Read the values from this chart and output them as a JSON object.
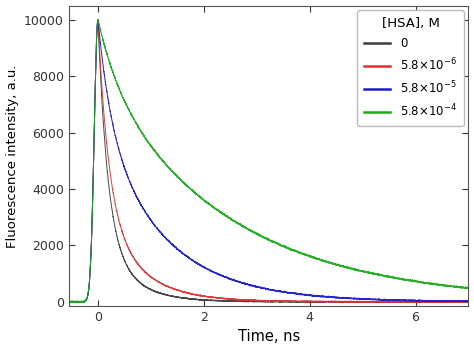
{
  "title": "",
  "xlabel": "Time, ns",
  "ylabel": "Fluorescence intensity, a.u.",
  "xlim": [
    -0.55,
    7.0
  ],
  "ylim": [
    -150,
    10500
  ],
  "yticks": [
    0,
    2000,
    4000,
    6000,
    8000,
    10000
  ],
  "xticks": [
    0,
    2,
    4,
    6
  ],
  "peak_time": 0.0,
  "rise_start": -0.35,
  "rise_sigma": 0.07,
  "curves": [
    {
      "label": "0",
      "color": "#3d3d3d",
      "tau1": 0.18,
      "tau2": 0.55,
      "a1": 0.75,
      "a2": 0.25,
      "amplitude": 10000,
      "noise_base": 8,
      "noise_shot": 0.02
    },
    {
      "label": "5.8×10$^{-6}$",
      "color": "#e03030",
      "tau1": 0.2,
      "tau2": 0.7,
      "a1": 0.65,
      "a2": 0.35,
      "amplitude": 10000,
      "noise_base": 8,
      "noise_shot": 0.02
    },
    {
      "label": "5.8×10$^{-5}$",
      "color": "#1a1acc",
      "tau1": 0.25,
      "tau2": 1.2,
      "a1": 0.35,
      "a2": 0.65,
      "amplitude": 10000,
      "noise_base": 10,
      "noise_shot": 0.025
    },
    {
      "label": "5.8×10$^{-4}$",
      "color": "#1aaa1a",
      "tau1": 0.4,
      "tau2": 2.5,
      "a1": 0.2,
      "a2": 0.8,
      "amplitude": 10000,
      "noise_base": 12,
      "noise_shot": 0.03
    }
  ],
  "legend_title": "[HSA], M",
  "background_color": "#ffffff",
  "plot_bg_color": "#ffffff",
  "figsize": [
    4.74,
    3.5
  ],
  "dpi": 100
}
